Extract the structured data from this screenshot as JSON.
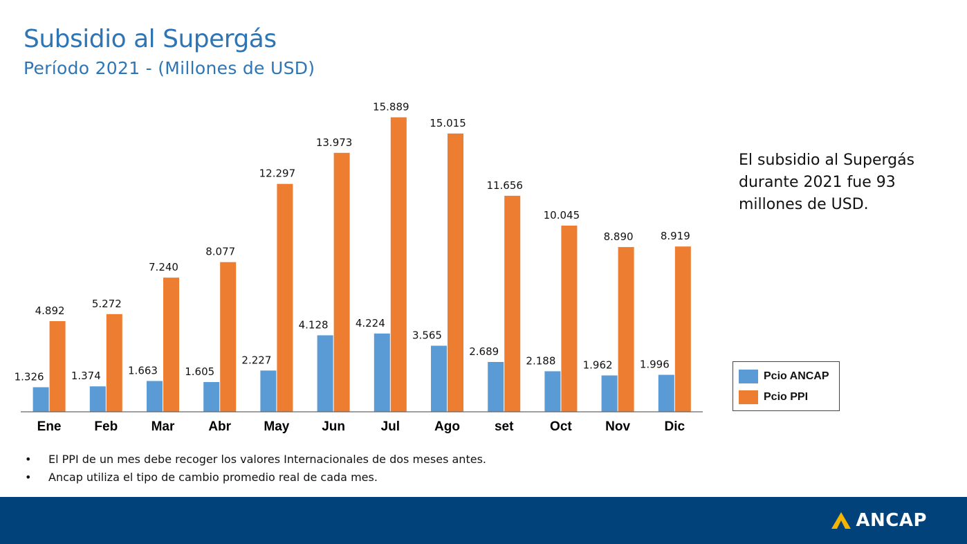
{
  "header": {
    "title": "Subsidio al Supergás",
    "subtitle": "Período 2021 - (Millones de USD)"
  },
  "chart_data": {
    "type": "bar",
    "categories": [
      "Ene",
      "Feb",
      "Mar",
      "Abr",
      "May",
      "Jun",
      "Jul",
      "Ago",
      "set",
      "Oct",
      "Nov",
      "Dic"
    ],
    "series": [
      {
        "name": "Pcio ANCAP",
        "color": "#5b9bd5",
        "values": [
          1.326,
          1.374,
          1.663,
          1.605,
          2.227,
          4.128,
          4.224,
          3.565,
          2.689,
          2.188,
          1.962,
          1.996
        ],
        "labels": [
          "1.326",
          "1.374",
          "1.663",
          "1.605",
          "2.227",
          "4.128",
          "4.224",
          "3.565",
          "2.689",
          "2.188",
          "1.962",
          "1.996"
        ]
      },
      {
        "name": "Pcio PPI",
        "color": "#ed7d31",
        "values": [
          4.892,
          5.272,
          7.24,
          8.077,
          12.297,
          13.973,
          15.889,
          15.015,
          11.656,
          10.045,
          8.89,
          8.919
        ],
        "labels": [
          "4.892",
          "5.272",
          "7.240",
          "8.077",
          "12.297",
          "13.973",
          "15.889",
          "15.015",
          "11.656",
          "10.045",
          "8.890",
          "8.919"
        ]
      }
    ],
    "ylim": [
      0,
      16.5
    ],
    "grid": false,
    "legend_position": "right"
  },
  "note": "El subsidio al Supergás durante 2021 fue 93 millones de USD.",
  "bullets": [
    "El PPI de un mes debe recoger los valores Internacionales de dos meses antes.",
    "Ancap utiliza el tipo de cambio promedio real de cada mes."
  ],
  "footer": {
    "brand": "ANCAP",
    "background_color": "#004279",
    "logo_color": "#f5b400"
  }
}
